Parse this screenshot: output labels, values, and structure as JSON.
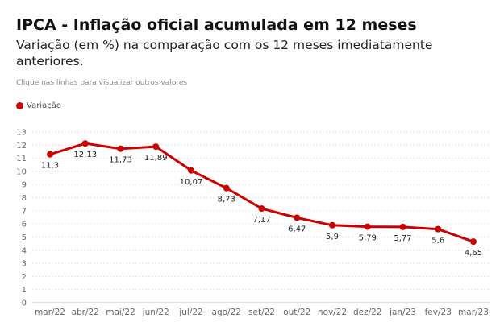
{
  "title": "IPCA - Inflação oficial acumulada em 12 meses",
  "subtitle": "Variação (em %) na comparação com os 12 meses imediatamente anteriores.",
  "hint": "Clique nas linhas para visualizar outros valores",
  "legend": {
    "label": "Variação",
    "color": "#cc0000"
  },
  "chart_data": {
    "type": "line",
    "title": "IPCA - Inflação oficial acumulada em 12 meses",
    "subtitle": "Variação (em %) na comparação com os 12 meses imediatamente anteriores.",
    "xlabel": "",
    "ylabel": "",
    "ylim": [
      0,
      13
    ],
    "yticks": [
      "0",
      "1",
      "2",
      "3",
      "4",
      "5",
      "6",
      "7",
      "8",
      "9",
      "10",
      "11",
      "12",
      "13"
    ],
    "grid": "horizontal",
    "legend_position": "top-left",
    "categories": [
      "mar/22",
      "abr/22",
      "mai/22",
      "jun/22",
      "jul/22",
      "ago/22",
      "set/22",
      "out/22",
      "nov/22",
      "dez/22",
      "jan/23",
      "fev/23",
      "mar/23"
    ],
    "series": [
      {
        "name": "Variação",
        "color": "#cc0000",
        "values": [
          11.3,
          12.13,
          11.73,
          11.89,
          10.07,
          8.73,
          7.17,
          6.47,
          5.9,
          5.79,
          5.77,
          5.6,
          4.65
        ],
        "labels": [
          "11,3",
          "12,13",
          "11,73",
          "11,89",
          "10,07",
          "8,73",
          "7,17",
          "6,47",
          "5,9",
          "5,79",
          "5,77",
          "5,6",
          "4,65"
        ]
      }
    ]
  }
}
